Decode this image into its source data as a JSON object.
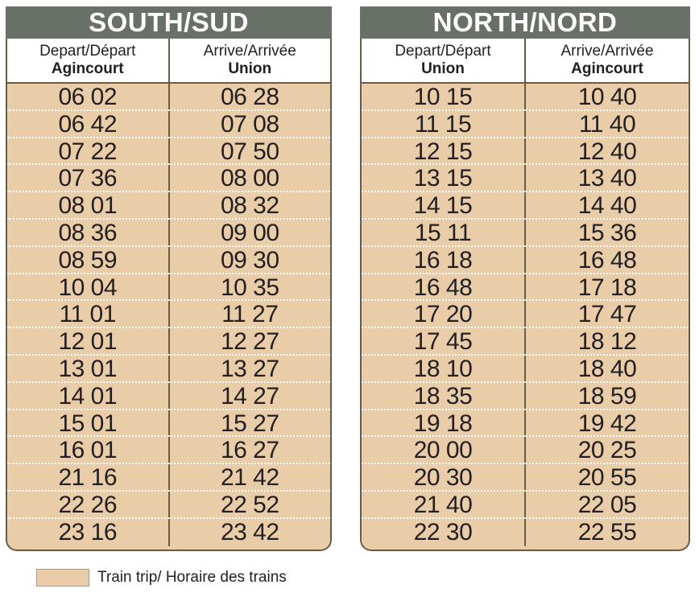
{
  "south": {
    "title": "SOUTH/SUD",
    "col1": {
      "label": "Depart/Départ",
      "station": "Agincourt"
    },
    "col2": {
      "label": "Arrive/Arrivée",
      "station": "Union"
    },
    "rows": [
      [
        "06 02",
        "06 28"
      ],
      [
        "06 42",
        "07 08"
      ],
      [
        "07 22",
        "07 50"
      ],
      [
        "07 36",
        "08 00"
      ],
      [
        "08 01",
        "08 32"
      ],
      [
        "08 36",
        "09 00"
      ],
      [
        "08 59",
        "09 30"
      ],
      [
        "10 04",
        "10 35"
      ],
      [
        "11 01",
        "11 27"
      ],
      [
        "12 01",
        "12 27"
      ],
      [
        "13 01",
        "13 27"
      ],
      [
        "14 01",
        "14 27"
      ],
      [
        "15 01",
        "15 27"
      ],
      [
        "16 01",
        "16 27"
      ],
      [
        "21 16",
        "21 42"
      ],
      [
        "22 26",
        "22 52"
      ],
      [
        "23 16",
        "23 42"
      ]
    ]
  },
  "north": {
    "title": "NORTH/NORD",
    "col1": {
      "label": "Depart/Départ",
      "station": "Union"
    },
    "col2": {
      "label": "Arrive/Arrivée",
      "station": "Agincourt"
    },
    "rows": [
      [
        "10 15",
        "10 40"
      ],
      [
        "11 15",
        "11 40"
      ],
      [
        "12 15",
        "12 40"
      ],
      [
        "13 15",
        "13 40"
      ],
      [
        "14 15",
        "14 40"
      ],
      [
        "15 11",
        "15 36"
      ],
      [
        "16 18",
        "16 48"
      ],
      [
        "16 48",
        "17 18"
      ],
      [
        "17 20",
        "17 47"
      ],
      [
        "17 45",
        "18 12"
      ],
      [
        "18 10",
        "18 40"
      ],
      [
        "18 35",
        "18 59"
      ],
      [
        "19 18",
        "19 42"
      ],
      [
        "20 00",
        "20 25"
      ],
      [
        "20 30",
        "20 55"
      ],
      [
        "21 40",
        "22 05"
      ],
      [
        "22 30",
        "22 55"
      ]
    ]
  },
  "legend": {
    "label": "Train trip/ Horaire des trains"
  },
  "colors": {
    "header": "#697068",
    "fill": "#e9cda9",
    "border": "#6b5b45"
  }
}
